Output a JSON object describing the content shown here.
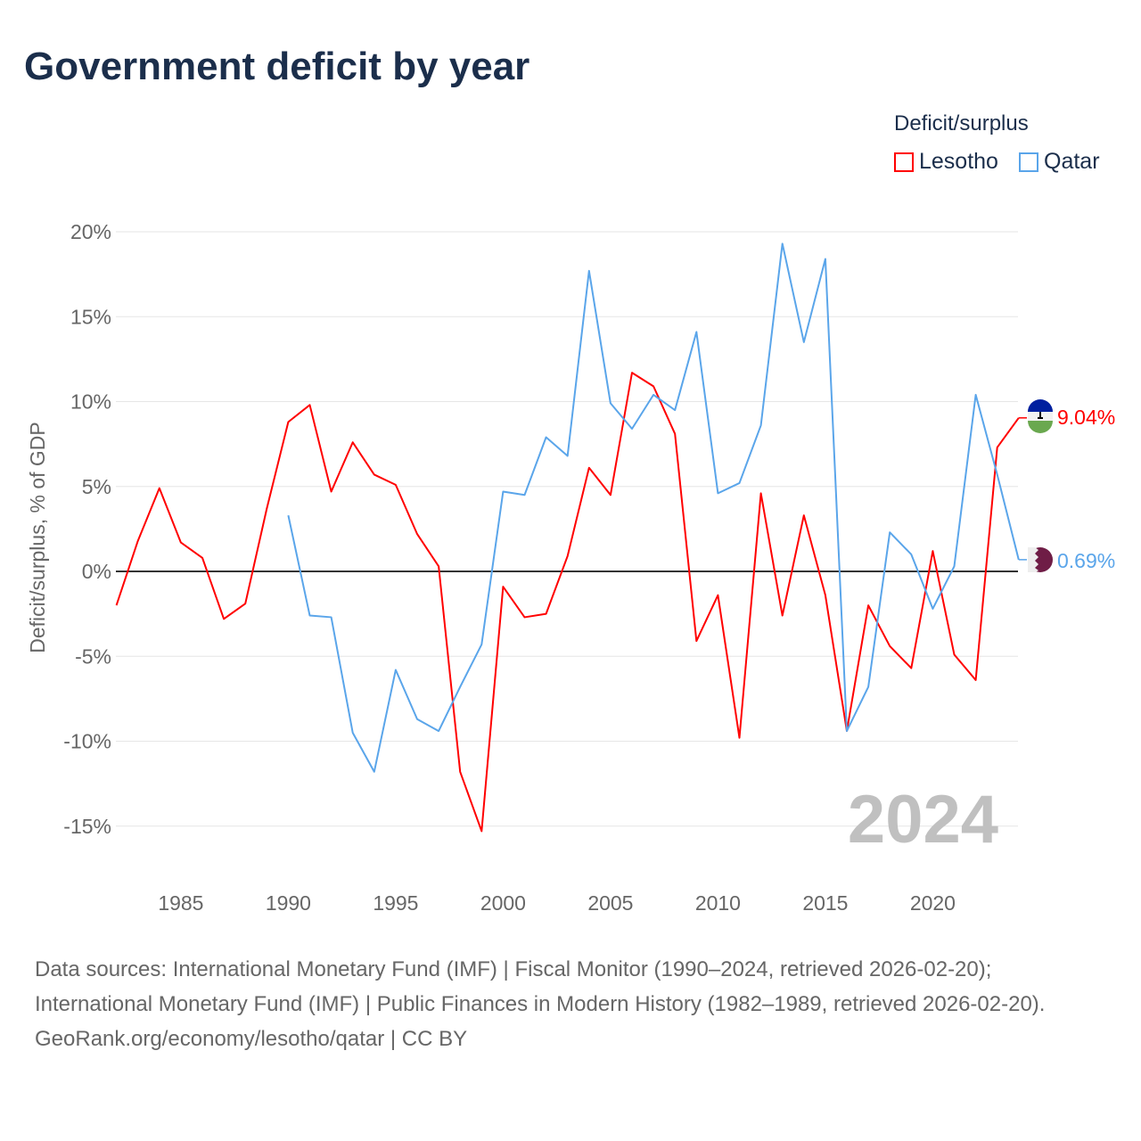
{
  "title": "Government deficit by year",
  "legend": {
    "title": "Deficit/surplus",
    "items": [
      "Lesotho",
      "Qatar"
    ]
  },
  "colors": {
    "Lesotho": "#ff0000",
    "Qatar": "#5aa5ea"
  },
  "watermark_year": "2024",
  "footer": {
    "sources": "Data sources: International Monetary Fund (IMF) | Fiscal Monitor (1990–2024, retrieved 2026-02-20); International Monetary Fund (IMF) | Public Finances in Modern History (1982–1989, retrieved 2026-02-20).",
    "credit": "GeoRank.org/economy/lesotho/qatar | CC BY"
  },
  "chart_data": {
    "type": "line",
    "title": "Government deficit by year",
    "ylabel": "Deficit/surplus, % of GDP",
    "xlim": [
      1982,
      2024
    ],
    "ylim": [
      -17,
      21
    ],
    "yticks": [
      20,
      15,
      10,
      5,
      0,
      -5,
      -10,
      -15
    ],
    "ytick_labels": [
      "20%",
      "15%",
      "10%",
      "5%",
      "0%",
      "-5%",
      "-10%",
      "-15%"
    ],
    "xticks": [
      1985,
      1990,
      1995,
      2000,
      2005,
      2010,
      2015,
      2020
    ],
    "end_labels": {
      "Lesotho": "9.04%",
      "Qatar": "0.69%"
    },
    "series": [
      {
        "name": "Lesotho",
        "start": 1982,
        "values": [
          -2.0,
          1.8,
          4.9,
          1.7,
          0.8,
          -2.8,
          -1.9,
          3.7,
          8.8,
          9.8,
          4.7,
          7.6,
          5.7,
          5.1,
          2.2,
          0.3,
          -11.8,
          -15.3,
          -0.9,
          -2.7,
          -2.5,
          0.9,
          6.1,
          4.5,
          11.7,
          10.9,
          8.1,
          -4.1,
          -1.4,
          -9.8,
          4.6,
          -2.6,
          3.3,
          -1.4,
          -9.4,
          -2.0,
          -4.4,
          -5.7,
          1.2,
          -4.9,
          -6.4,
          7.3,
          9.04
        ]
      },
      {
        "name": "Qatar",
        "start": 1990,
        "values": [
          3.3,
          -2.6,
          -2.7,
          -9.5,
          -11.8,
          -5.8,
          -8.7,
          -9.4,
          -6.8,
          -4.3,
          4.7,
          4.5,
          7.9,
          6.8,
          17.7,
          9.9,
          8.4,
          10.4,
          9.5,
          14.1,
          4.6,
          5.2,
          8.6,
          19.3,
          13.5,
          18.4,
          -9.4,
          -6.8,
          2.3,
          1.0,
          -2.2,
          0.3,
          10.4,
          5.7,
          0.69
        ]
      }
    ]
  }
}
